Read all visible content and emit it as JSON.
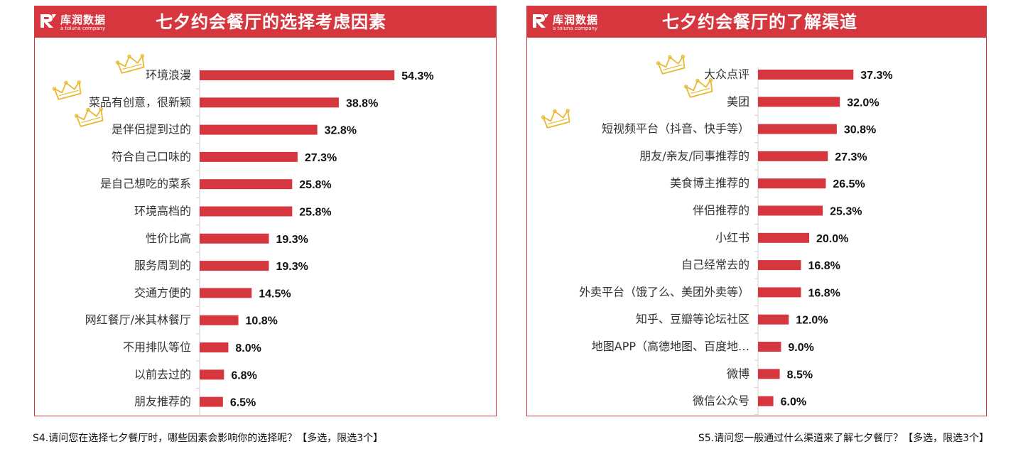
{
  "brand": {
    "logo_text": "库润数据",
    "logo_sub": "a toluna company",
    "accent": "#d6373f",
    "bar_color": "#d6373f",
    "crown_color": "#e8b830"
  },
  "left": {
    "title": "七夕约会餐厅的选择考虑因素",
    "caption": "S4.请问您在选择七夕餐厅时，哪些因素会影响你的选择呢？【多选，限选3个】"
  },
  "right": {
    "title": "七夕约会餐厅的了解渠道",
    "caption": "S5.请问您一般通过什么渠道来了解七夕餐厅？【多选，限选3个】"
  },
  "chart_data": [
    {
      "type": "bar",
      "orientation": "horizontal",
      "title": "七夕约会餐厅的选择考虑因素",
      "categories": [
        "环境浪漫",
        "菜品有创意，很新颖",
        "是伴侣提到过的",
        "符合自己口味的",
        "是自己想吃的菜系",
        "环境高档的",
        "性价比高",
        "服务周到的",
        "交通方便的",
        "网红餐厅/米其林餐厅",
        "不用排队等位",
        "以前去过的",
        "朋友推荐的"
      ],
      "values": [
        54.3,
        38.8,
        32.8,
        27.3,
        25.8,
        25.8,
        19.3,
        19.3,
        14.5,
        10.8,
        8.0,
        6.8,
        6.5
      ],
      "value_labels": [
        "54.3%",
        "38.8%",
        "32.8%",
        "27.3%",
        "25.8%",
        "25.8%",
        "19.3%",
        "19.3%",
        "14.5%",
        "10.8%",
        "8.0%",
        "6.8%",
        "6.5%"
      ],
      "crowned": [
        0,
        1,
        2
      ],
      "xlim": [
        0,
        100
      ],
      "grid": false,
      "legend": "none"
    },
    {
      "type": "bar",
      "orientation": "horizontal",
      "title": "七夕约会餐厅的了解渠道",
      "categories": [
        "大众点评",
        "美团",
        "短视频平台（抖音、快手等）",
        "朋友/亲友/同事推荐的",
        "美食博主推荐的",
        "伴侣推荐的",
        "小红书",
        "自己经常去的",
        "外卖平台（饿了么、美团外卖等）",
        "知乎、豆瓣等论坛社区",
        "地图APP（高德地图、百度地…",
        "微博",
        "微信公众号"
      ],
      "values": [
        37.3,
        32.0,
        30.8,
        27.3,
        26.5,
        25.3,
        20.0,
        16.8,
        16.8,
        12.0,
        9.0,
        8.5,
        6.0
      ],
      "value_labels": [
        "37.3%",
        "32.0%",
        "30.8%",
        "27.3%",
        "26.5%",
        "25.3%",
        "20.0%",
        "16.8%",
        "16.8%",
        "12.0%",
        "9.0%",
        "8.5%",
        "6.0%"
      ],
      "crowned": [
        0,
        1,
        2
      ],
      "xlim": [
        0,
        100
      ],
      "grid": false,
      "legend": "none"
    }
  ]
}
